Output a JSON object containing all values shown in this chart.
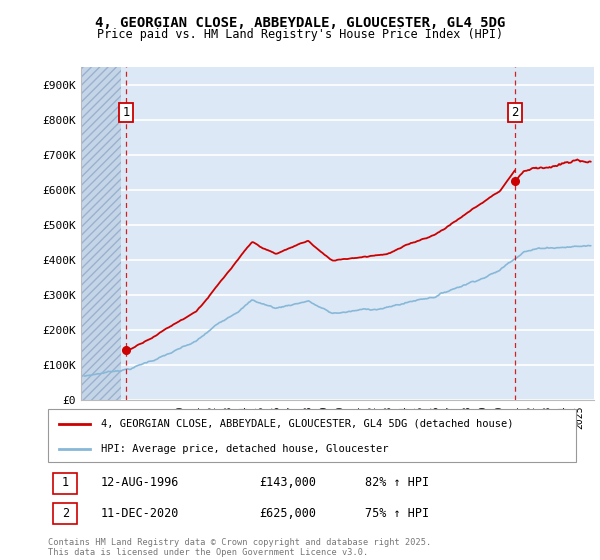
{
  "title1": "4, GEORGIAN CLOSE, ABBEYDALE, GLOUCESTER, GL4 5DG",
  "title2": "Price paid vs. HM Land Registry's House Price Index (HPI)",
  "ylim": [
    0,
    950000
  ],
  "yticks": [
    0,
    100000,
    200000,
    300000,
    400000,
    500000,
    600000,
    700000,
    800000,
    900000
  ],
  "ytick_labels": [
    "£0",
    "£100K",
    "£200K",
    "£300K",
    "£400K",
    "£500K",
    "£600K",
    "£700K",
    "£800K",
    "£900K"
  ],
  "background_color": "#dce8f5",
  "grid_color": "#ffffff",
  "red_line_color": "#cc0000",
  "blue_line_color": "#88b8d8",
  "sale1_price": 143000,
  "sale2_price": 625000,
  "sale1_year": 1996.62,
  "sale2_year": 2020.95,
  "legend_label1": "4, GEORGIAN CLOSE, ABBEYDALE, GLOUCESTER, GL4 5DG (detached house)",
  "legend_label2": "HPI: Average price, detached house, Gloucester",
  "footer": "Contains HM Land Registry data © Crown copyright and database right 2025.\nThis data is licensed under the Open Government Licence v3.0.",
  "xlim_start": 1993.8,
  "xlim_end": 2025.9,
  "hatch_end": 1996.3
}
